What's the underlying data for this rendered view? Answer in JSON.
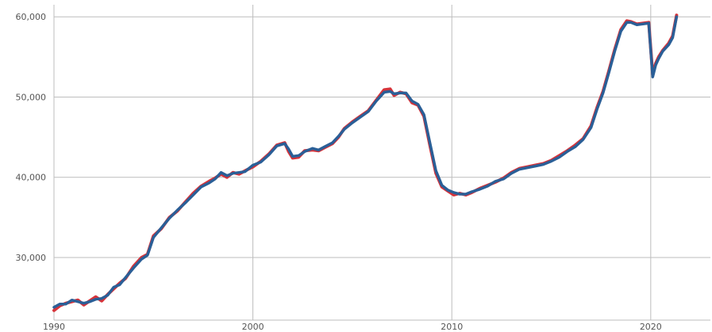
{
  "chart_data": {
    "type": "line",
    "title": "",
    "xlabel": "",
    "ylabel": "",
    "xlim": [
      1990,
      2023
    ],
    "ylim": [
      22200,
      61500
    ],
    "grid": true,
    "legend": "none",
    "x_ticks": [
      {
        "value": 1990,
        "label": "1990"
      },
      {
        "value": 2000,
        "label": "2000"
      },
      {
        "value": 2010,
        "label": "2010"
      },
      {
        "value": 2020,
        "label": "2020"
      }
    ],
    "y_ticks": [
      {
        "value": 30000,
        "label": "30,000"
      },
      {
        "value": 40000,
        "label": "40,000"
      },
      {
        "value": 50000,
        "label": "50,000"
      },
      {
        "value": 60000,
        "label": "60,000"
      }
    ],
    "series": [
      {
        "color": "#d6333a",
        "x": [
          1990.0,
          1990.3,
          1990.6,
          1990.9,
          1991.2,
          1991.5,
          1991.8,
          1992.1,
          1992.4,
          1992.7,
          1993.0,
          1993.3,
          1993.6,
          1994.0,
          1994.4,
          1994.7,
          1995.0,
          1995.4,
          1995.8,
          1996.2,
          1996.6,
          1997.0,
          1997.4,
          1997.8,
          1998.1,
          1998.4,
          1998.7,
          1999.0,
          1999.3,
          1999.6,
          2000.0,
          2000.4,
          2000.8,
          2001.2,
          2001.6,
          2001.8,
          2002.0,
          2002.3,
          2002.6,
          2003.0,
          2003.3,
          2003.6,
          2004.0,
          2004.3,
          2004.6,
          2005.0,
          2005.4,
          2005.8,
          2006.2,
          2006.6,
          2006.9,
          2007.1,
          2007.4,
          2007.7,
          2008.0,
          2008.3,
          2008.6,
          2008.9,
          2009.2,
          2009.5,
          2009.8,
          2010.1,
          2010.4,
          2010.7,
          2011.0,
          2011.4,
          2011.8,
          2012.2,
          2012.6,
          2013.0,
          2013.4,
          2013.8,
          2014.2,
          2014.6,
          2015.0,
          2015.4,
          2015.8,
          2016.2,
          2016.6,
          2017.0,
          2017.3,
          2017.6,
          2017.9,
          2018.2,
          2018.5,
          2018.8,
          2019.0,
          2019.3,
          2019.6,
          2019.9,
          2020.1,
          2020.25,
          2020.4,
          2020.6,
          2020.9,
          2021.1,
          2021.3
        ],
        "values": [
          23400,
          24000,
          24300,
          24500,
          24700,
          24100,
          24600,
          25100,
          24600,
          25400,
          26100,
          26800,
          27400,
          28900,
          30000,
          30400,
          32700,
          33600,
          35000,
          35800,
          36900,
          38000,
          38900,
          39500,
          39900,
          40400,
          40000,
          40600,
          40400,
          40800,
          41300,
          42000,
          42900,
          44000,
          44300,
          43200,
          42400,
          42500,
          43300,
          43400,
          43300,
          43700,
          44200,
          45000,
          46100,
          46900,
          47600,
          48300,
          49600,
          50900,
          51000,
          50200,
          50600,
          50400,
          49300,
          49000,
          47600,
          44000,
          40500,
          38800,
          38300,
          37800,
          38000,
          37800,
          38100,
          38600,
          39000,
          39400,
          39900,
          40600,
          41100,
          41300,
          41500,
          41700,
          42100,
          42700,
          43300,
          44000,
          44800,
          46400,
          48700,
          50700,
          53300,
          56000,
          58400,
          59500,
          59400,
          59100,
          59200,
          59300,
          52800,
          54200,
          55000,
          55800,
          56700,
          57600,
          60200
        ]
      },
      {
        "color": "#2a5f97",
        "x": [
          1990.0,
          1990.3,
          1990.6,
          1990.9,
          1991.2,
          1991.5,
          1991.8,
          1992.1,
          1992.4,
          1992.7,
          1993.0,
          1993.3,
          1993.6,
          1994.0,
          1994.4,
          1994.7,
          1995.0,
          1995.4,
          1995.8,
          1996.2,
          1996.6,
          1997.0,
          1997.4,
          1997.8,
          1998.1,
          1998.4,
          1998.7,
          1999.0,
          1999.3,
          1999.6,
          2000.0,
          2000.4,
          2000.8,
          2001.2,
          2001.6,
          2001.8,
          2002.0,
          2002.3,
          2002.6,
          2003.0,
          2003.3,
          2003.6,
          2004.0,
          2004.3,
          2004.6,
          2005.0,
          2005.4,
          2005.8,
          2006.2,
          2006.6,
          2006.9,
          2007.1,
          2007.4,
          2007.7,
          2008.0,
          2008.3,
          2008.6,
          2008.9,
          2009.2,
          2009.5,
          2009.8,
          2010.1,
          2010.4,
          2010.7,
          2011.0,
          2011.4,
          2011.8,
          2012.2,
          2012.6,
          2013.0,
          2013.4,
          2013.8,
          2014.2,
          2014.6,
          2015.0,
          2015.4,
          2015.8,
          2016.2,
          2016.6,
          2017.0,
          2017.3,
          2017.6,
          2017.9,
          2018.2,
          2018.5,
          2018.8,
          2019.0,
          2019.3,
          2019.6,
          2019.9,
          2020.1,
          2020.25,
          2020.4,
          2020.6,
          2020.9,
          2021.1,
          2021.3
        ],
        "values": [
          23800,
          24200,
          24200,
          24700,
          24500,
          24300,
          24500,
          24800,
          24900,
          25300,
          26300,
          26600,
          27500,
          28700,
          29800,
          30300,
          32500,
          33700,
          34900,
          35900,
          36800,
          37800,
          38800,
          39300,
          39800,
          40600,
          40200,
          40500,
          40600,
          40700,
          41500,
          41900,
          42800,
          43900,
          44200,
          43500,
          42600,
          42700,
          43200,
          43600,
          43400,
          43800,
          44300,
          45100,
          46000,
          46800,
          47500,
          48200,
          49500,
          50600,
          50700,
          50400,
          50500,
          50500,
          49500,
          49100,
          47800,
          44300,
          40800,
          39000,
          38400,
          38100,
          37900,
          37900,
          38200,
          38500,
          38900,
          39500,
          39800,
          40500,
          41000,
          41200,
          41400,
          41600,
          42000,
          42500,
          43200,
          43800,
          44700,
          46200,
          48500,
          50500,
          53100,
          55800,
          58200,
          59300,
          59300,
          59000,
          59100,
          59200,
          52500,
          54000,
          54800,
          55700,
          56500,
          57400,
          60000
        ]
      }
    ]
  }
}
